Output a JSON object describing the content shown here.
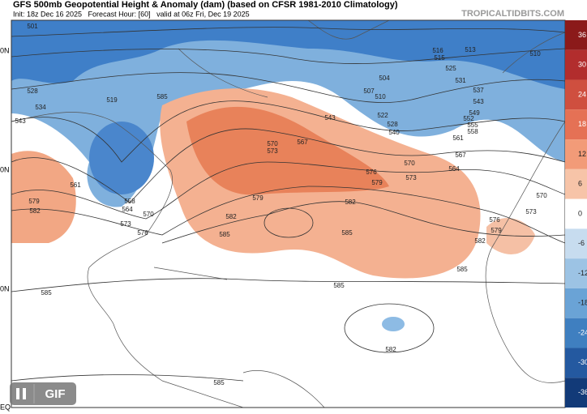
{
  "header": {
    "title": "GFS 500mb Geopotential Height & Anomaly (dam) (based on CFSR 1981-2010 Climatology)",
    "subtitle": "Init: 18z Dec 16 2025   Forecast Hour: [60]   valid at 06z Fri, Dec 19 2025",
    "watermark": "TROPICALTIDBITS.COM"
  },
  "lat_labels": [
    "0N",
    "0N",
    "0N",
    "EQ"
  ],
  "colorbar": {
    "labels": [
      "36",
      "30",
      "24",
      "18",
      "12",
      "6",
      "0",
      "-6",
      "-12",
      "-18",
      "-24",
      "-30",
      "-36"
    ]
  },
  "controls": {
    "gif": "GIF"
  },
  "contour_labels": [
    "501",
    "528",
    "534",
    "543",
    "519",
    "561",
    "579",
    "582",
    "558",
    "564",
    "570",
    "573",
    "576",
    "585",
    "585",
    "579",
    "582",
    "585",
    "585",
    "582",
    "579",
    "576",
    "573",
    "570",
    "567",
    "564",
    "561",
    "558",
    "555",
    "552",
    "549",
    "543",
    "537",
    "531",
    "525",
    "516",
    "515",
    "513",
    "510",
    "504",
    "507",
    "510",
    "522",
    "528",
    "540",
    "543",
    "567",
    "570",
    "573",
    "576",
    "579",
    "582",
    "585",
    "570",
    "573",
    "582",
    "585",
    "585"
  ]
}
